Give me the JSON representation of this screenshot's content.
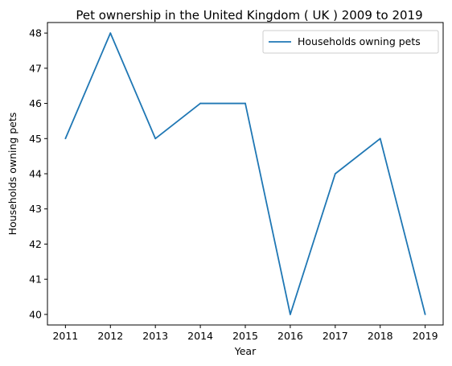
{
  "chart_data": {
    "type": "line",
    "title": "Pet ownership in the United Kingdom ( UK ) 2009 to 2019",
    "xlabel": "Year",
    "ylabel": "Households owning pets",
    "x": [
      2011,
      2012,
      2013,
      2014,
      2015,
      2016,
      2017,
      2018,
      2019
    ],
    "series": [
      {
        "name": "Households owning pets",
        "values": [
          45,
          48,
          45,
          46,
          46,
          40,
          44,
          45,
          40
        ],
        "color": "#1f77b4"
      }
    ],
    "xlim": [
      2010.6,
      2019.4
    ],
    "ylim": [
      39.7,
      48.3
    ],
    "xticks": [
      2011,
      2012,
      2013,
      2014,
      2015,
      2016,
      2017,
      2018,
      2019
    ],
    "yticks": [
      40,
      41,
      42,
      43,
      44,
      45,
      46,
      47,
      48
    ],
    "grid": false,
    "legend_position": "top-right"
  }
}
